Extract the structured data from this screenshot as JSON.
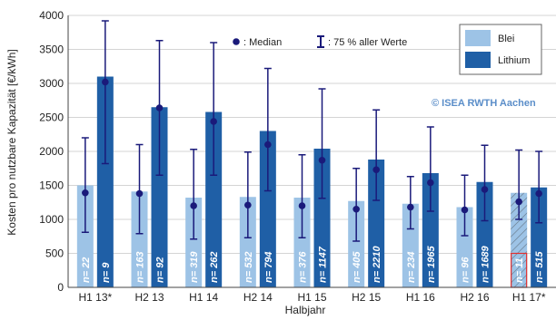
{
  "chart_data": {
    "type": "bar",
    "title": "",
    "xlabel": "Halbjahr",
    "ylabel": "Kosten pro nutzbare Kapazität [€/kWh]",
    "ylim": [
      0,
      4000
    ],
    "yticks": [
      0,
      500,
      1000,
      1500,
      2000,
      2500,
      3000,
      3500,
      4000
    ],
    "grid": true,
    "categories": [
      "H1 13*",
      "H2 13",
      "H1 14",
      "H2 14",
      "H1 15",
      "H2 15",
      "H1 16",
      "H2 16",
      "H1 17*"
    ],
    "series": [
      {
        "name": "Blei",
        "color": "#9dc3e6",
        "values": [
          1500,
          1410,
          1320,
          1330,
          1320,
          1270,
          1230,
          1180,
          1390
        ],
        "median": [
          1390,
          1380,
          1200,
          1210,
          1200,
          1150,
          1180,
          1140,
          1260
        ],
        "range_low": [
          810,
          790,
          710,
          730,
          730,
          680,
          860,
          760,
          1000
        ],
        "range_high": [
          2200,
          2100,
          2030,
          1990,
          1950,
          1750,
          1630,
          1650,
          2020
        ],
        "n": [
          "n= 22",
          "n= 163",
          "n= 319",
          "n= 532",
          "n= 376",
          "n= 405",
          "n= 234",
          "n= 96",
          "n= 11"
        ]
      },
      {
        "name": "Lithium",
        "color": "#1f5fa6",
        "values": [
          3100,
          2650,
          2580,
          2300,
          2040,
          1880,
          1680,
          1550,
          1470
        ],
        "median": [
          3020,
          2640,
          2440,
          2100,
          1870,
          1730,
          1540,
          1440,
          1380
        ],
        "range_low": [
          1820,
          1650,
          1650,
          1420,
          1310,
          1280,
          1120,
          980,
          950
        ],
        "range_high": [
          3920,
          3630,
          3600,
          3220,
          2920,
          2610,
          2360,
          2090,
          2000
        ],
        "n": [
          "n= 9",
          "n= 92",
          "n= 262",
          "n= 794",
          "n= 1147",
          "n= 2210",
          "n= 1965",
          "n= 1689",
          "n= 515"
        ]
      }
    ],
    "legend": {
      "placement": "top-right",
      "median_label": ": Median",
      "range_label": ": 75 % aller Werte"
    },
    "watermark": "© ISEA RWTH Aachen",
    "error_color": "#1a1a7a"
  }
}
